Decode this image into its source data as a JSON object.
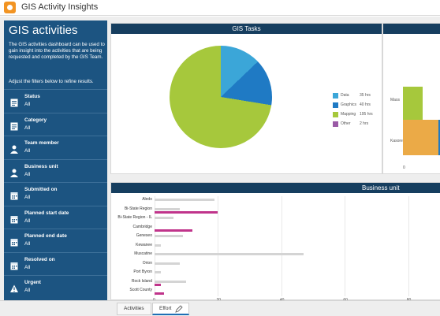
{
  "app": {
    "title": "GIS Activity Insights"
  },
  "sidebar": {
    "title": "GIS activities",
    "description": "The GIS activities dashboard can be used to gain insight into the activities that are being requested and completed by the GIS Team.",
    "hint": "Adjust the filters below to refine results.",
    "filters": [
      {
        "label": "Status",
        "value": "All",
        "icon": "document-icon"
      },
      {
        "label": "Category",
        "value": "All",
        "icon": "document-icon"
      },
      {
        "label": "Team member",
        "value": "All",
        "icon": "person-icon"
      },
      {
        "label": "Business unit",
        "value": "All",
        "icon": "person-icon"
      },
      {
        "label": "Submitted on",
        "value": "All",
        "icon": "calendar-icon"
      },
      {
        "label": "Planned start date",
        "value": "All",
        "icon": "calendar-icon"
      },
      {
        "label": "Planned end date",
        "value": "All",
        "icon": "calendar-icon"
      },
      {
        "label": "Resolved on",
        "value": "All",
        "icon": "calendar-icon"
      },
      {
        "label": "Urgent",
        "value": "All",
        "icon": "warning-icon"
      }
    ]
  },
  "tasks_panel": {
    "title": "GIS Tasks",
    "legend": [
      {
        "name": "Data",
        "value": "35 hrs",
        "color": "#3ba6d8"
      },
      {
        "name": "Graphics",
        "value": "40 hrs",
        "color": "#1f7ac4"
      },
      {
        "name": "Mapping",
        "value": "195 hrs",
        "color": "#a6c83c"
      },
      {
        "name": "Other",
        "value": "2 hrs",
        "color": "#9a5aa6"
      }
    ]
  },
  "member_panel": {
    "categories": [
      "Mass",
      "Kasore"
    ],
    "tick": "0"
  },
  "business_panel": {
    "title": "Business unit",
    "ticks": [
      "0",
      "20",
      "40",
      "60",
      "80"
    ]
  },
  "tabs": {
    "activities": "Activities",
    "effort": "Effort"
  },
  "chart_data": [
    {
      "type": "pie",
      "title": "GIS Tasks",
      "categories": [
        "Data",
        "Graphics",
        "Mapping",
        "Other"
      ],
      "values": [
        35,
        40,
        195,
        2
      ],
      "colors": [
        "#3ba6d8",
        "#1f7ac4",
        "#a6c83c",
        "#9a5aa6"
      ]
    },
    {
      "type": "bar",
      "orientation": "horizontal",
      "title": "Business unit",
      "categories": [
        "Aledo",
        "Bi-State Region",
        "Bi-State Region - IL",
        "Cambridge",
        "Geneseo",
        "Kewanee",
        "Muscatine",
        "Orion",
        "Port Byron",
        "Rock Island",
        "Scott County"
      ],
      "xlim": [
        0,
        90
      ],
      "series": [
        {
          "values": [
            19,
            8,
            6,
            0,
            9,
            2,
            47,
            8,
            2,
            10,
            0
          ],
          "color": "#d4d4d4"
        },
        {
          "values": [
            0,
            20,
            0,
            12,
            0,
            0,
            0,
            0,
            0,
            2,
            3
          ],
          "color": "#c0348b"
        }
      ]
    }
  ]
}
